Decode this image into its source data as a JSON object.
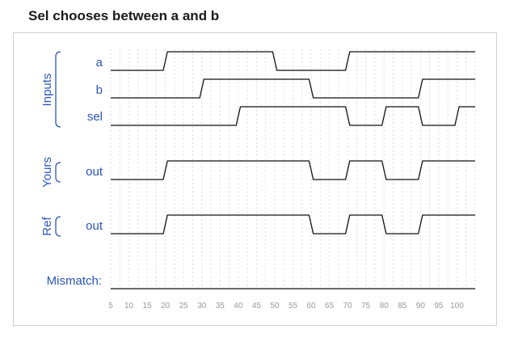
{
  "title": "Sel chooses between a and b",
  "groups": [
    {
      "key": "inputs",
      "label": "Inputs"
    },
    {
      "key": "yours",
      "label": "Yours"
    },
    {
      "key": "ref",
      "label": "Ref"
    }
  ],
  "mismatch_label": "Mismatch:",
  "chart_data": {
    "type": "timing",
    "x_ticks": [
      5,
      10,
      15,
      20,
      25,
      30,
      35,
      40,
      45,
      50,
      55,
      60,
      65,
      70,
      75,
      80,
      85,
      90,
      95,
      100
    ],
    "xlim": [
      5,
      105
    ],
    "signals": [
      {
        "key": "a",
        "group": "Inputs",
        "name": "a",
        "initial": 0,
        "transitions": [
          [
            20,
            1
          ],
          [
            50,
            0
          ],
          [
            70,
            1
          ]
        ]
      },
      {
        "key": "b",
        "group": "Inputs",
        "name": "b",
        "initial": 0,
        "transitions": [
          [
            30,
            1
          ],
          [
            60,
            0
          ],
          [
            90,
            1
          ]
        ]
      },
      {
        "key": "sel",
        "group": "Inputs",
        "name": "sel",
        "initial": 0,
        "transitions": [
          [
            40,
            1
          ],
          [
            70,
            0
          ],
          [
            80,
            1
          ],
          [
            90,
            0
          ],
          [
            100,
            1
          ]
        ]
      },
      {
        "key": "yours_out",
        "group": "Yours",
        "name": "out",
        "initial": 0,
        "transitions": [
          [
            20,
            1
          ],
          [
            60,
            0
          ],
          [
            70,
            1
          ],
          [
            80,
            0
          ],
          [
            90,
            1
          ]
        ]
      },
      {
        "key": "ref_out",
        "group": "Ref",
        "name": "out",
        "initial": 0,
        "transitions": [
          [
            20,
            1
          ],
          [
            60,
            0
          ],
          [
            70,
            1
          ],
          [
            80,
            0
          ],
          [
            90,
            1
          ]
        ]
      },
      {
        "key": "mismatch",
        "group": "",
        "name": "Mismatch:",
        "initial": 0,
        "transitions": []
      }
    ]
  }
}
